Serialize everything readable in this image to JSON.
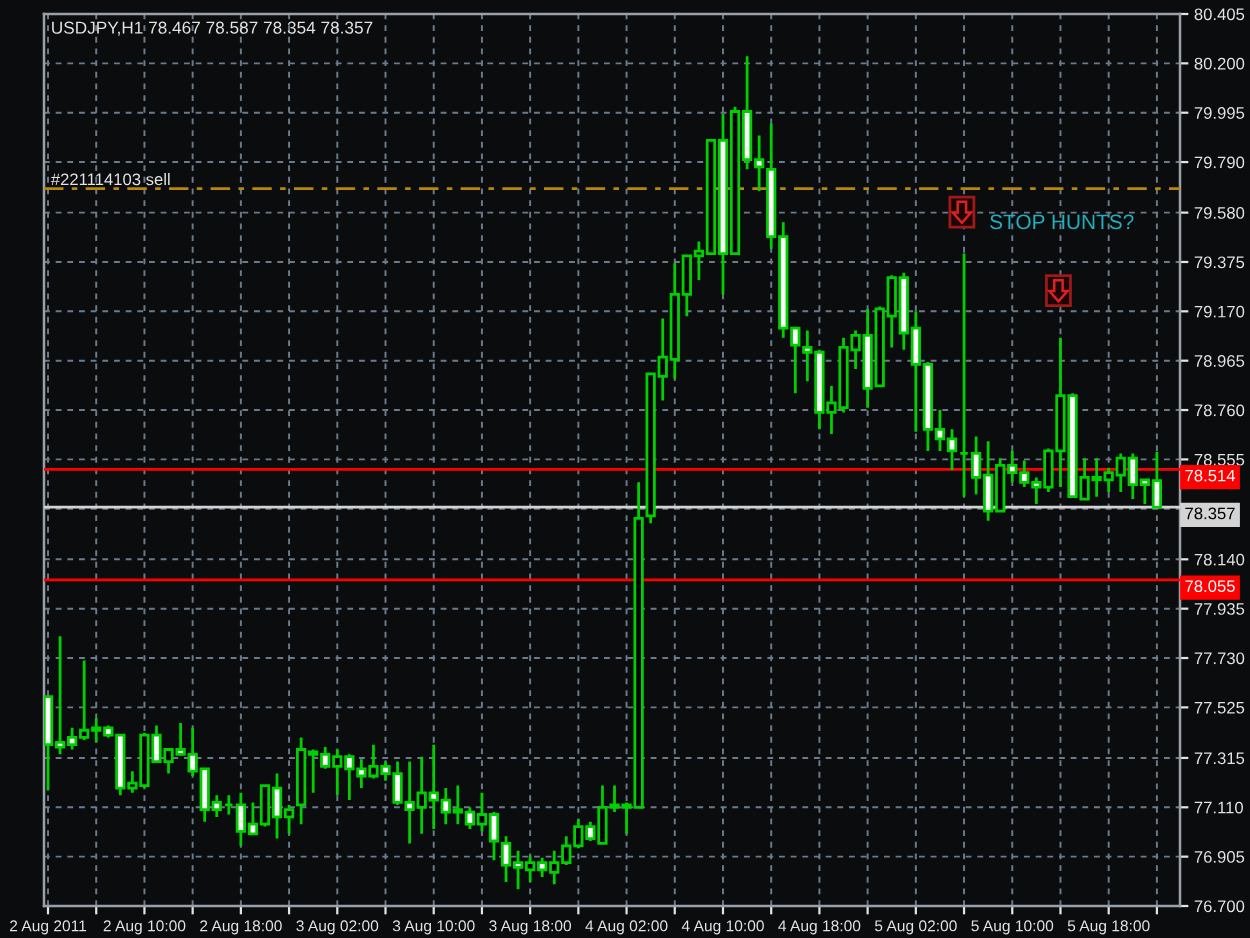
{
  "chart_data": {
    "type": "candlestick",
    "title": "USDJPY,H1 78.467 78.587 78.354 78.357",
    "color": "#00d000",
    "x": [
      "2011-08-02T02:00",
      "2011-08-02T03:00",
      "2011-08-02T04:00",
      "2011-08-02T05:00",
      "2011-08-02T06:00",
      "2011-08-02T07:00",
      "2011-08-02T08:00",
      "2011-08-02T09:00",
      "2011-08-02T10:00",
      "2011-08-02T11:00",
      "2011-08-02T12:00",
      "2011-08-02T13:00",
      "2011-08-02T14:00",
      "2011-08-02T15:00",
      "2011-08-02T16:00",
      "2011-08-02T17:00",
      "2011-08-02T18:00",
      "2011-08-02T19:00",
      "2011-08-02T20:00",
      "2011-08-02T21:00",
      "2011-08-02T22:00",
      "2011-08-02T23:00",
      "2011-08-03T00:00",
      "2011-08-03T01:00",
      "2011-08-03T02:00",
      "2011-08-03T03:00",
      "2011-08-03T04:00",
      "2011-08-03T05:00",
      "2011-08-03T06:00",
      "2011-08-03T07:00",
      "2011-08-03T08:00",
      "2011-08-03T09:00",
      "2011-08-03T10:00",
      "2011-08-03T11:00",
      "2011-08-03T12:00",
      "2011-08-03T13:00",
      "2011-08-03T14:00",
      "2011-08-03T15:00",
      "2011-08-03T16:00",
      "2011-08-03T17:00",
      "2011-08-03T18:00",
      "2011-08-03T19:00",
      "2011-08-03T20:00",
      "2011-08-03T21:00",
      "2011-08-03T22:00",
      "2011-08-03T23:00",
      "2011-08-04T00:00",
      "2011-08-04T01:00",
      "2011-08-04T02:00",
      "2011-08-04T03:00",
      "2011-08-04T04:00",
      "2011-08-04T05:00",
      "2011-08-04T06:00",
      "2011-08-04T07:00",
      "2011-08-04T08:00",
      "2011-08-04T09:00",
      "2011-08-04T10:00",
      "2011-08-04T11:00",
      "2011-08-04T12:00",
      "2011-08-04T13:00",
      "2011-08-04T14:00",
      "2011-08-04T15:00",
      "2011-08-04T16:00",
      "2011-08-04T17:00",
      "2011-08-04T18:00",
      "2011-08-04T19:00",
      "2011-08-04T20:00",
      "2011-08-04T21:00",
      "2011-08-04T22:00",
      "2011-08-04T23:00",
      "2011-08-05T00:00",
      "2011-08-05T01:00",
      "2011-08-05T02:00",
      "2011-08-05T03:00",
      "2011-08-05T04:00",
      "2011-08-05T05:00",
      "2011-08-05T06:00",
      "2011-08-05T07:00",
      "2011-08-05T08:00",
      "2011-08-05T09:00",
      "2011-08-05T10:00",
      "2011-08-05T11:00",
      "2011-08-05T12:00",
      "2011-08-05T13:00",
      "2011-08-05T14:00",
      "2011-08-05T15:00",
      "2011-08-05T16:00",
      "2011-08-05T17:00",
      "2011-08-05T18:00",
      "2011-08-05T19:00",
      "2011-08-05T20:00",
      "2011-08-05T21:00",
      "2011-08-05T22:00"
    ],
    "ohlc": [
      [
        77.57,
        77.57,
        77.18,
        77.37
      ],
      [
        77.38,
        77.82,
        77.33,
        77.36
      ],
      [
        77.4,
        77.44,
        77.35,
        77.37
      ],
      [
        77.4,
        77.72,
        77.39,
        77.43
      ],
      [
        77.43,
        77.48,
        77.38,
        77.44
      ],
      [
        77.44,
        77.45,
        77.4,
        77.41
      ],
      [
        77.41,
        77.41,
        77.16,
        77.19
      ],
      [
        77.19,
        77.26,
        77.17,
        77.21
      ],
      [
        77.2,
        77.42,
        77.19,
        77.41
      ],
      [
        77.41,
        77.45,
        77.3,
        77.3
      ],
      [
        77.3,
        77.35,
        77.25,
        77.35
      ],
      [
        77.35,
        77.46,
        77.33,
        77.33
      ],
      [
        77.33,
        77.44,
        77.24,
        77.26
      ],
      [
        77.27,
        77.27,
        77.05,
        77.1
      ],
      [
        77.13,
        77.16,
        77.07,
        77.1
      ],
      [
        77.12,
        77.16,
        77.08,
        77.12
      ],
      [
        77.12,
        77.17,
        76.95,
        77.01
      ],
      [
        77.04,
        77.13,
        77.0,
        77.0
      ],
      [
        77.04,
        77.2,
        77.03,
        77.2
      ],
      [
        77.19,
        77.25,
        76.98,
        77.07
      ],
      [
        77.07,
        77.12,
        77.0,
        77.1
      ],
      [
        77.12,
        77.4,
        77.04,
        77.35
      ],
      [
        77.34,
        77.35,
        77.17,
        77.33
      ],
      [
        77.33,
        77.36,
        77.27,
        77.28
      ],
      [
        77.28,
        77.35,
        77.16,
        77.32
      ],
      [
        77.32,
        77.33,
        77.14,
        77.27
      ],
      [
        77.27,
        77.31,
        77.19,
        77.24
      ],
      [
        77.24,
        77.37,
        77.23,
        77.28
      ],
      [
        77.28,
        77.3,
        77.22,
        77.25
      ],
      [
        77.25,
        77.3,
        77.12,
        77.13
      ],
      [
        77.13,
        77.3,
        76.96,
        77.1
      ],
      [
        77.11,
        77.32,
        77.0,
        77.17
      ],
      [
        77.17,
        77.37,
        77.02,
        77.14
      ],
      [
        77.14,
        77.19,
        77.04,
        77.09
      ],
      [
        77.1,
        77.2,
        77.04,
        77.09
      ],
      [
        77.09,
        77.11,
        77.02,
        77.04
      ],
      [
        77.04,
        77.17,
        77.01,
        77.08
      ],
      [
        77.08,
        77.09,
        76.89,
        76.97
      ],
      [
        76.96,
        76.99,
        76.8,
        76.87
      ],
      [
        76.88,
        76.93,
        76.77,
        76.86
      ],
      [
        76.85,
        76.91,
        76.8,
        76.88
      ],
      [
        76.88,
        76.9,
        76.82,
        76.85
      ],
      [
        76.84,
        76.93,
        76.79,
        76.88
      ],
      [
        76.88,
        76.99,
        76.87,
        76.95
      ],
      [
        76.95,
        77.06,
        76.94,
        77.03
      ],
      [
        77.03,
        77.05,
        76.97,
        76.98
      ],
      [
        76.96,
        77.2,
        76.96,
        77.11
      ],
      [
        77.12,
        77.2,
        77.09,
        77.11
      ],
      [
        77.11,
        77.13,
        77.0,
        77.12
      ],
      [
        77.11,
        78.46,
        77.11,
        78.31
      ],
      [
        78.32,
        78.91,
        78.29,
        78.91
      ],
      [
        78.9,
        79.14,
        78.8,
        78.98
      ],
      [
        78.97,
        79.37,
        78.89,
        79.24
      ],
      [
        79.24,
        79.4,
        79.15,
        79.4
      ],
      [
        79.4,
        79.46,
        79.3,
        79.42
      ],
      [
        79.41,
        79.88,
        79.41,
        79.88
      ],
      [
        79.88,
        79.99,
        79.24,
        79.41
      ],
      [
        79.41,
        80.02,
        79.41,
        80.0
      ],
      [
        80.0,
        80.23,
        79.76,
        79.8
      ],
      [
        79.8,
        79.9,
        79.67,
        79.77
      ],
      [
        79.76,
        79.95,
        79.43,
        79.48
      ],
      [
        79.48,
        79.54,
        79.06,
        79.1
      ],
      [
        79.1,
        79.1,
        78.83,
        79.03
      ],
      [
        79.02,
        79.09,
        78.88,
        79.0
      ],
      [
        79.0,
        79.01,
        78.68,
        78.75
      ],
      [
        78.75,
        78.86,
        78.66,
        78.79
      ],
      [
        78.77,
        79.06,
        78.75,
        79.02
      ],
      [
        79.01,
        79.09,
        78.93,
        79.07
      ],
      [
        79.07,
        79.18,
        78.77,
        78.85
      ],
      [
        78.86,
        79.19,
        78.86,
        79.18
      ],
      [
        79.15,
        79.32,
        79.02,
        79.31
      ],
      [
        79.31,
        79.33,
        79.01,
        79.08
      ],
      [
        79.1,
        79.17,
        78.67,
        78.95
      ],
      [
        78.95,
        78.96,
        78.59,
        78.68
      ],
      [
        78.68,
        78.76,
        78.59,
        78.64
      ],
      [
        78.64,
        78.68,
        78.51,
        78.59
      ],
      [
        78.58,
        79.41,
        78.4,
        78.58
      ],
      [
        78.58,
        78.65,
        78.41,
        78.48
      ],
      [
        78.49,
        78.63,
        78.3,
        78.34
      ],
      [
        78.34,
        78.56,
        78.34,
        78.53
      ],
      [
        78.53,
        78.59,
        78.46,
        78.5
      ],
      [
        78.5,
        78.55,
        78.44,
        78.46
      ],
      [
        78.46,
        78.48,
        78.37,
        78.44
      ],
      [
        78.44,
        78.6,
        78.42,
        78.59
      ],
      [
        78.59,
        79.06,
        78.44,
        78.82
      ],
      [
        78.82,
        78.83,
        78.4,
        78.4
      ],
      [
        78.39,
        78.56,
        78.39,
        78.48
      ],
      [
        78.47,
        78.56,
        78.4,
        78.48
      ],
      [
        78.47,
        78.52,
        78.42,
        78.5
      ],
      [
        78.49,
        78.58,
        78.42,
        78.56
      ],
      [
        78.56,
        78.58,
        78.39,
        78.45
      ],
      [
        78.47,
        78.47,
        78.37,
        78.45
      ],
      [
        78.467,
        78.587,
        78.354,
        78.357
      ]
    ],
    "xlim": [
      "2011-08-02T01:40",
      "2011-08-05T23:55"
    ],
    "xticks": [
      {
        "value": "2011-08-02T02:00",
        "label": "2 Aug 2011"
      },
      {
        "value": "2011-08-02T06:00",
        "label": null
      },
      {
        "value": "2011-08-02T10:00",
        "label": "2 Aug 10:00"
      },
      {
        "value": "2011-08-02T14:00",
        "label": null
      },
      {
        "value": "2011-08-02T18:00",
        "label": "2 Aug 18:00"
      },
      {
        "value": "2011-08-02T22:00",
        "label": null
      },
      {
        "value": "2011-08-03T02:00",
        "label": "3 Aug 02:00"
      },
      {
        "value": "2011-08-03T06:00",
        "label": null
      },
      {
        "value": "2011-08-03T10:00",
        "label": "3 Aug 10:00"
      },
      {
        "value": "2011-08-03T14:00",
        "label": null
      },
      {
        "value": "2011-08-03T18:00",
        "label": "3 Aug 18:00"
      },
      {
        "value": "2011-08-03T22:00",
        "label": null
      },
      {
        "value": "2011-08-04T02:00",
        "label": "4 Aug 02:00"
      },
      {
        "value": "2011-08-04T06:00",
        "label": null
      },
      {
        "value": "2011-08-04T10:00",
        "label": "4 Aug 10:00"
      },
      {
        "value": "2011-08-04T14:00",
        "label": null
      },
      {
        "value": "2011-08-04T18:00",
        "label": "4 Aug 18:00"
      },
      {
        "value": "2011-08-04T22:00",
        "label": null
      },
      {
        "value": "2011-08-05T02:00",
        "label": "5 Aug 02:00"
      },
      {
        "value": "2011-08-05T06:00",
        "label": null
      },
      {
        "value": "2011-08-05T10:00",
        "label": "5 Aug 10:00"
      },
      {
        "value": "2011-08-05T14:00",
        "label": null
      },
      {
        "value": "2011-08-05T18:00",
        "label": "5 Aug 18:00"
      },
      {
        "value": "2011-08-05T22:00",
        "label": null
      }
    ],
    "ylim": [
      76.7,
      80.405
    ],
    "yticks": [
      80.405,
      {
        "value": 80.2,
        "label": "80.200"
      },
      79.995,
      {
        "value": 79.79,
        "label": "79.790"
      },
      {
        "value": 79.58,
        "label": "79.580"
      },
      79.375,
      {
        "value": 79.17,
        "label": "79.170"
      },
      78.965,
      {
        "value": 78.76,
        "label": "78.760"
      },
      78.555,
      {
        "value": 78.35,
        "label": null
      },
      {
        "value": 78.14,
        "label": "78.140"
      },
      77.935,
      {
        "value": 77.73,
        "label": "77.730"
      },
      77.525,
      77.315,
      {
        "value": 77.11,
        "label": "77.110"
      },
      76.905,
      {
        "value": 76.7,
        "label": "76.700"
      }
    ],
    "grid": true,
    "ref_lines": [
      {
        "axis": "y",
        "value": 79.68,
        "label": "#221114103 sell",
        "color": "#b8860b",
        "line_style": "dashed"
      },
      {
        "axis": "y",
        "value": 78.514,
        "label": "78.514",
        "color": "#ff0000",
        "line_style": "solid"
      },
      {
        "axis": "y",
        "value": 78.357,
        "label": "78.357",
        "color": "#d4d4d4",
        "line_style": "solid"
      },
      {
        "axis": "y",
        "value": 78.055,
        "label": "78.055",
        "color": "#ff0000",
        "line_style": "solid"
      }
    ],
    "annotations": [
      "STOP HUNTS?"
    ]
  }
}
